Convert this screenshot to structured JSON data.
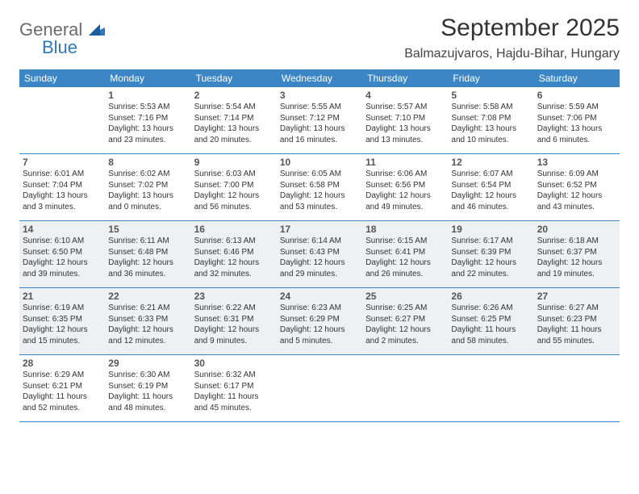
{
  "logo": {
    "word1": "General",
    "word2": "Blue"
  },
  "title": "September 2025",
  "location": "Balmazujvaros, Hajdu-Bihar, Hungary",
  "colors": {
    "header_bar": "#3d86c6",
    "header_text": "#ffffff",
    "shaded_bg": "#eef1f3",
    "body_text": "#333333",
    "logo_gray": "#6b6b6b",
    "logo_blue": "#2f78b7",
    "rule": "#3d86c6"
  },
  "weekdays": [
    "Sunday",
    "Monday",
    "Tuesday",
    "Wednesday",
    "Thursday",
    "Friday",
    "Saturday"
  ],
  "weeks": [
    [
      {
        "num": "",
        "sunrise": "",
        "sunset": "",
        "daylight": ""
      },
      {
        "num": "1",
        "sunrise": "Sunrise: 5:53 AM",
        "sunset": "Sunset: 7:16 PM",
        "daylight": "Daylight: 13 hours and 23 minutes."
      },
      {
        "num": "2",
        "sunrise": "Sunrise: 5:54 AM",
        "sunset": "Sunset: 7:14 PM",
        "daylight": "Daylight: 13 hours and 20 minutes."
      },
      {
        "num": "3",
        "sunrise": "Sunrise: 5:55 AM",
        "sunset": "Sunset: 7:12 PM",
        "daylight": "Daylight: 13 hours and 16 minutes."
      },
      {
        "num": "4",
        "sunrise": "Sunrise: 5:57 AM",
        "sunset": "Sunset: 7:10 PM",
        "daylight": "Daylight: 13 hours and 13 minutes."
      },
      {
        "num": "5",
        "sunrise": "Sunrise: 5:58 AM",
        "sunset": "Sunset: 7:08 PM",
        "daylight": "Daylight: 13 hours and 10 minutes."
      },
      {
        "num": "6",
        "sunrise": "Sunrise: 5:59 AM",
        "sunset": "Sunset: 7:06 PM",
        "daylight": "Daylight: 13 hours and 6 minutes."
      }
    ],
    [
      {
        "num": "7",
        "sunrise": "Sunrise: 6:01 AM",
        "sunset": "Sunset: 7:04 PM",
        "daylight": "Daylight: 13 hours and 3 minutes."
      },
      {
        "num": "8",
        "sunrise": "Sunrise: 6:02 AM",
        "sunset": "Sunset: 7:02 PM",
        "daylight": "Daylight: 13 hours and 0 minutes."
      },
      {
        "num": "9",
        "sunrise": "Sunrise: 6:03 AM",
        "sunset": "Sunset: 7:00 PM",
        "daylight": "Daylight: 12 hours and 56 minutes."
      },
      {
        "num": "10",
        "sunrise": "Sunrise: 6:05 AM",
        "sunset": "Sunset: 6:58 PM",
        "daylight": "Daylight: 12 hours and 53 minutes."
      },
      {
        "num": "11",
        "sunrise": "Sunrise: 6:06 AM",
        "sunset": "Sunset: 6:56 PM",
        "daylight": "Daylight: 12 hours and 49 minutes."
      },
      {
        "num": "12",
        "sunrise": "Sunrise: 6:07 AM",
        "sunset": "Sunset: 6:54 PM",
        "daylight": "Daylight: 12 hours and 46 minutes."
      },
      {
        "num": "13",
        "sunrise": "Sunrise: 6:09 AM",
        "sunset": "Sunset: 6:52 PM",
        "daylight": "Daylight: 12 hours and 43 minutes."
      }
    ],
    [
      {
        "num": "14",
        "sunrise": "Sunrise: 6:10 AM",
        "sunset": "Sunset: 6:50 PM",
        "daylight": "Daylight: 12 hours and 39 minutes."
      },
      {
        "num": "15",
        "sunrise": "Sunrise: 6:11 AM",
        "sunset": "Sunset: 6:48 PM",
        "daylight": "Daylight: 12 hours and 36 minutes."
      },
      {
        "num": "16",
        "sunrise": "Sunrise: 6:13 AM",
        "sunset": "Sunset: 6:46 PM",
        "daylight": "Daylight: 12 hours and 32 minutes."
      },
      {
        "num": "17",
        "sunrise": "Sunrise: 6:14 AM",
        "sunset": "Sunset: 6:43 PM",
        "daylight": "Daylight: 12 hours and 29 minutes."
      },
      {
        "num": "18",
        "sunrise": "Sunrise: 6:15 AM",
        "sunset": "Sunset: 6:41 PM",
        "daylight": "Daylight: 12 hours and 26 minutes."
      },
      {
        "num": "19",
        "sunrise": "Sunrise: 6:17 AM",
        "sunset": "Sunset: 6:39 PM",
        "daylight": "Daylight: 12 hours and 22 minutes."
      },
      {
        "num": "20",
        "sunrise": "Sunrise: 6:18 AM",
        "sunset": "Sunset: 6:37 PM",
        "daylight": "Daylight: 12 hours and 19 minutes."
      }
    ],
    [
      {
        "num": "21",
        "sunrise": "Sunrise: 6:19 AM",
        "sunset": "Sunset: 6:35 PM",
        "daylight": "Daylight: 12 hours and 15 minutes."
      },
      {
        "num": "22",
        "sunrise": "Sunrise: 6:21 AM",
        "sunset": "Sunset: 6:33 PM",
        "daylight": "Daylight: 12 hours and 12 minutes."
      },
      {
        "num": "23",
        "sunrise": "Sunrise: 6:22 AM",
        "sunset": "Sunset: 6:31 PM",
        "daylight": "Daylight: 12 hours and 9 minutes."
      },
      {
        "num": "24",
        "sunrise": "Sunrise: 6:23 AM",
        "sunset": "Sunset: 6:29 PM",
        "daylight": "Daylight: 12 hours and 5 minutes."
      },
      {
        "num": "25",
        "sunrise": "Sunrise: 6:25 AM",
        "sunset": "Sunset: 6:27 PM",
        "daylight": "Daylight: 12 hours and 2 minutes."
      },
      {
        "num": "26",
        "sunrise": "Sunrise: 6:26 AM",
        "sunset": "Sunset: 6:25 PM",
        "daylight": "Daylight: 11 hours and 58 minutes."
      },
      {
        "num": "27",
        "sunrise": "Sunrise: 6:27 AM",
        "sunset": "Sunset: 6:23 PM",
        "daylight": "Daylight: 11 hours and 55 minutes."
      }
    ],
    [
      {
        "num": "28",
        "sunrise": "Sunrise: 6:29 AM",
        "sunset": "Sunset: 6:21 PM",
        "daylight": "Daylight: 11 hours and 52 minutes."
      },
      {
        "num": "29",
        "sunrise": "Sunrise: 6:30 AM",
        "sunset": "Sunset: 6:19 PM",
        "daylight": "Daylight: 11 hours and 48 minutes."
      },
      {
        "num": "30",
        "sunrise": "Sunrise: 6:32 AM",
        "sunset": "Sunset: 6:17 PM",
        "daylight": "Daylight: 11 hours and 45 minutes."
      },
      {
        "num": "",
        "sunrise": "",
        "sunset": "",
        "daylight": ""
      },
      {
        "num": "",
        "sunrise": "",
        "sunset": "",
        "daylight": ""
      },
      {
        "num": "",
        "sunrise": "",
        "sunset": "",
        "daylight": ""
      },
      {
        "num": "",
        "sunrise": "",
        "sunset": "",
        "daylight": ""
      }
    ]
  ],
  "shaded_rows": [
    2,
    3
  ]
}
